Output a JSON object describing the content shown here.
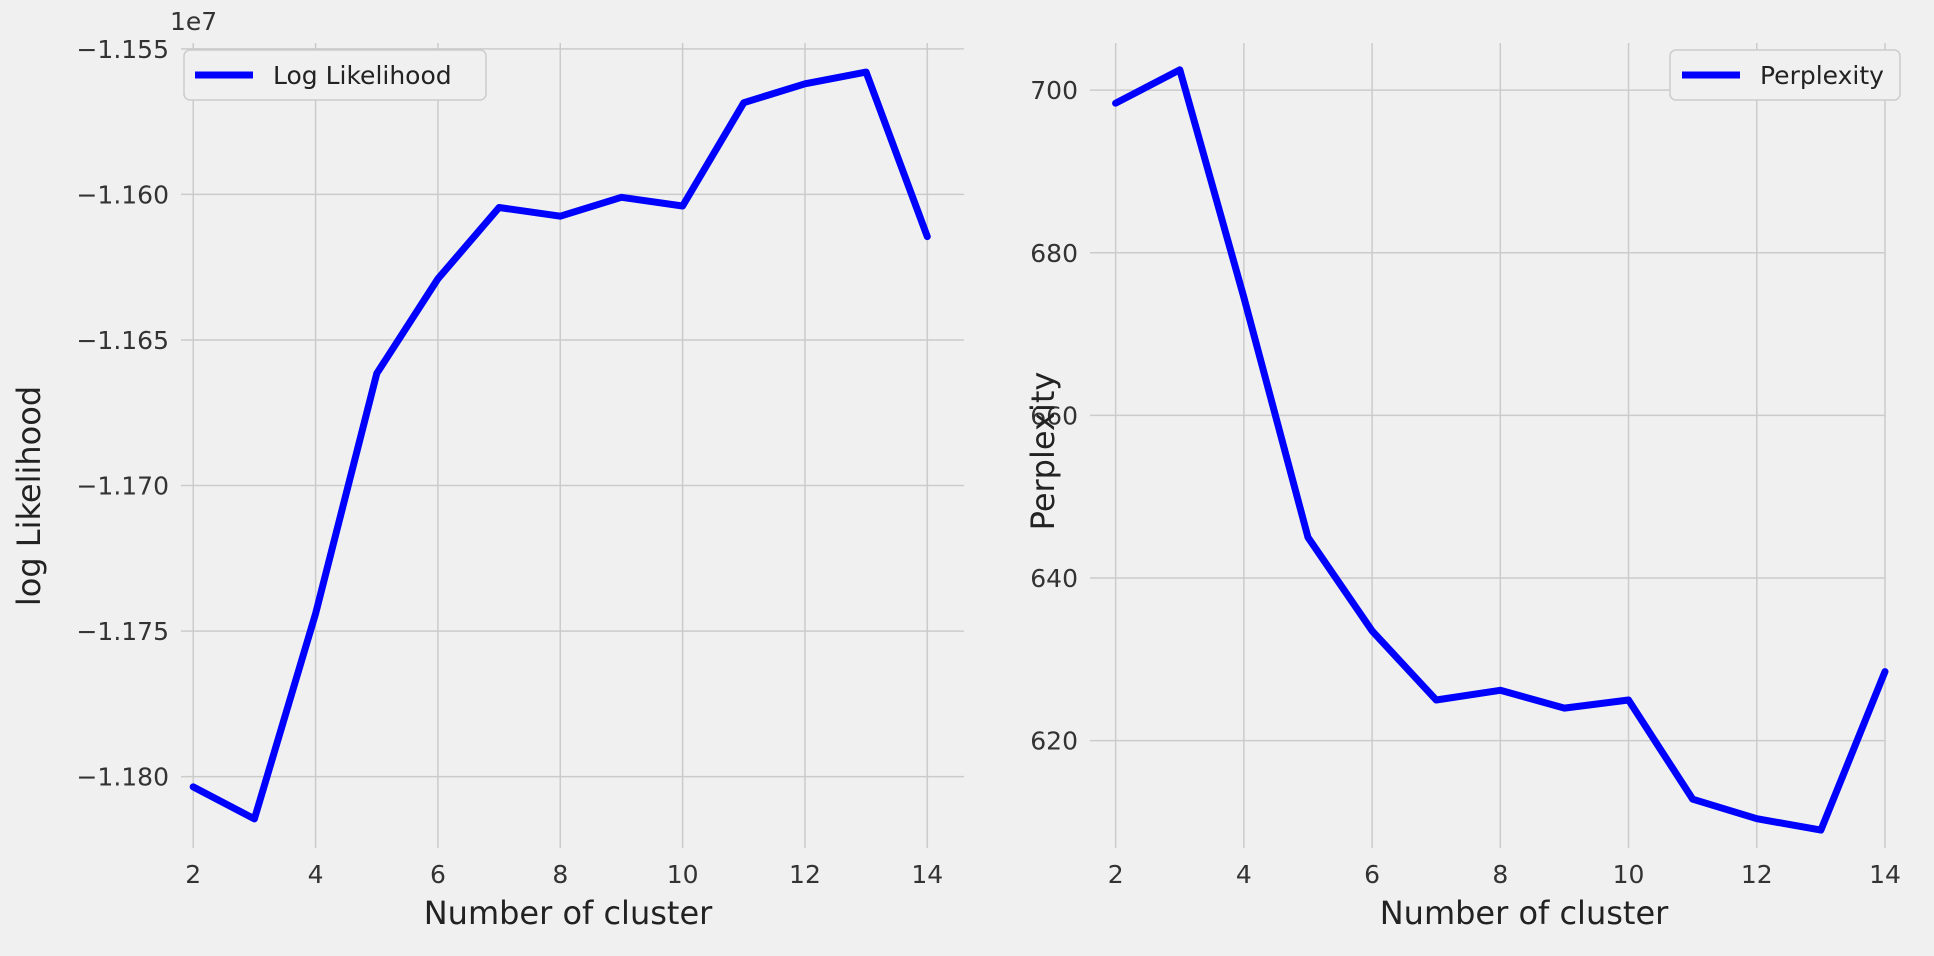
{
  "chart_data": [
    {
      "type": "line",
      "x": [
        2,
        3,
        4,
        5,
        6,
        7,
        8,
        9,
        10,
        11,
        12,
        13,
        14
      ],
      "series": [
        {
          "name": "Log Likelihood",
          "color": "#0000ff",
          "values": [
            -11803500,
            -11814500,
            -11744000,
            -11661500,
            -11629000,
            -11604500,
            -11607500,
            -11601000,
            -11604000,
            -11568500,
            -11562000,
            -11558000,
            -11614500
          ]
        }
      ],
      "xlabel": "Number of cluster",
      "ylabel": "log Likelihood",
      "offset_label": "1e7",
      "xlim": [
        1.8,
        14.6
      ],
      "ylim": [
        -11824500,
        -11548000
      ],
      "xticks": [
        2,
        4,
        6,
        8,
        10,
        12,
        14
      ],
      "yticks": [
        -11800000,
        -11750000,
        -11700000,
        -11650000,
        -11600000,
        -11550000
      ],
      "ytick_labels": [
        "−1.180",
        "−1.175",
        "−1.170",
        "−1.165",
        "−1.160",
        "−1.155"
      ],
      "legend": "top-left",
      "grid": true
    },
    {
      "type": "line",
      "x": [
        2,
        3,
        4,
        5,
        6,
        7,
        8,
        9,
        10,
        11,
        12,
        13,
        14
      ],
      "series": [
        {
          "name": "Perplexity",
          "color": "#0000ff",
          "values": [
            698.4,
            702.5,
            674.5,
            645.0,
            633.5,
            625.0,
            626.2,
            624.0,
            625.0,
            612.8,
            610.4,
            609.0,
            628.5
          ]
        }
      ],
      "xlabel": "Number of cluster",
      "ylabel": "Perplexity",
      "xlim": [
        1.6,
        14.0
      ],
      "ylim": [
        606.8,
        705.8
      ],
      "xticks": [
        2,
        4,
        6,
        8,
        10,
        12,
        14
      ],
      "yticks": [
        620,
        640,
        660,
        680,
        700
      ],
      "ytick_labels": [
        "620",
        "640",
        "660",
        "680",
        "700"
      ],
      "legend": "top-right",
      "grid": true
    }
  ]
}
